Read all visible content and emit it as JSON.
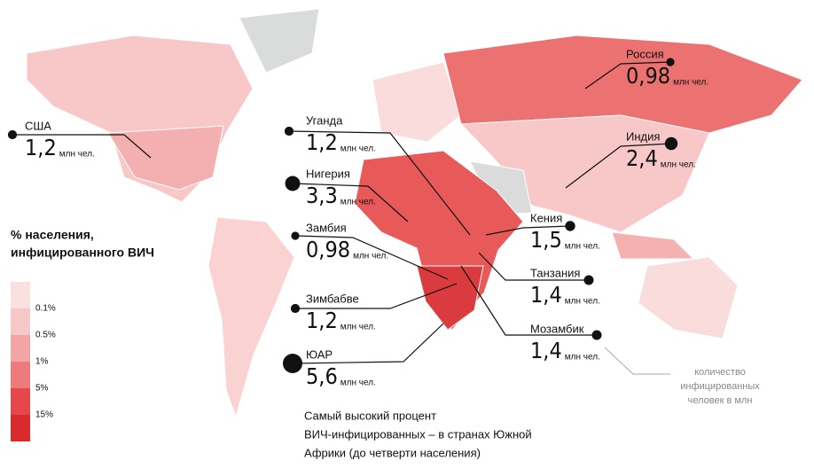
{
  "legend": {
    "title_lines": [
      "% населения,",
      "инфицированного ВИЧ"
    ],
    "colors": [
      "#fbe0e0",
      "#f8c8c8",
      "#f4a4a4",
      "#ee7b7b",
      "#e6474a",
      "#d92b2e"
    ],
    "breaks": [
      {
        "value": 0.1,
        "label": "0.1%"
      },
      {
        "value": 0.5,
        "label": "0.5%"
      },
      {
        "value": 1,
        "label": "1%"
      },
      {
        "value": 5,
        "label": "5%"
      },
      {
        "value": 15,
        "label": "15%"
      }
    ]
  },
  "callouts": [
    {
      "name": "США",
      "value": 1.2,
      "value_label": "1,2",
      "unit": "млн чел."
    },
    {
      "name": "Уганда",
      "value": 1.2,
      "value_label": "1,2",
      "unit": "млн чел."
    },
    {
      "name": "Нигерия",
      "value": 3.3,
      "value_label": "3,3",
      "unit": "млн чел."
    },
    {
      "name": "Замбия",
      "value": 0.98,
      "value_label": "0,98",
      "unit": "млн чел."
    },
    {
      "name": "Зимбабве",
      "value": 1.2,
      "value_label": "1,2",
      "unit": "млн чел."
    },
    {
      "name": "ЮАР",
      "value": 5.6,
      "value_label": "5,6",
      "unit": "млн чел."
    },
    {
      "name": "Россия",
      "value": 0.98,
      "value_label": "0,98",
      "unit": "млн чел."
    },
    {
      "name": "Индия",
      "value": 2.4,
      "value_label": "2,4",
      "unit": "млн чел."
    },
    {
      "name": "Кения",
      "value": 1.5,
      "value_label": "1,5",
      "unit": "млн чел."
    },
    {
      "name": "Танзания",
      "value": 1.4,
      "value_label": "1,4",
      "unit": "млн чел."
    },
    {
      "name": "Мозамбик",
      "value": 1.4,
      "value_label": "1,4",
      "unit": "млн чел."
    }
  ],
  "size_note_lines": [
    "количество",
    "инфицированных",
    "человек в млн"
  ],
  "annotation_lines": [
    "Самый высокий процент",
    "ВИЧ-инфицированных – в странах Южной",
    "Африки (до четверти населения)"
  ]
}
